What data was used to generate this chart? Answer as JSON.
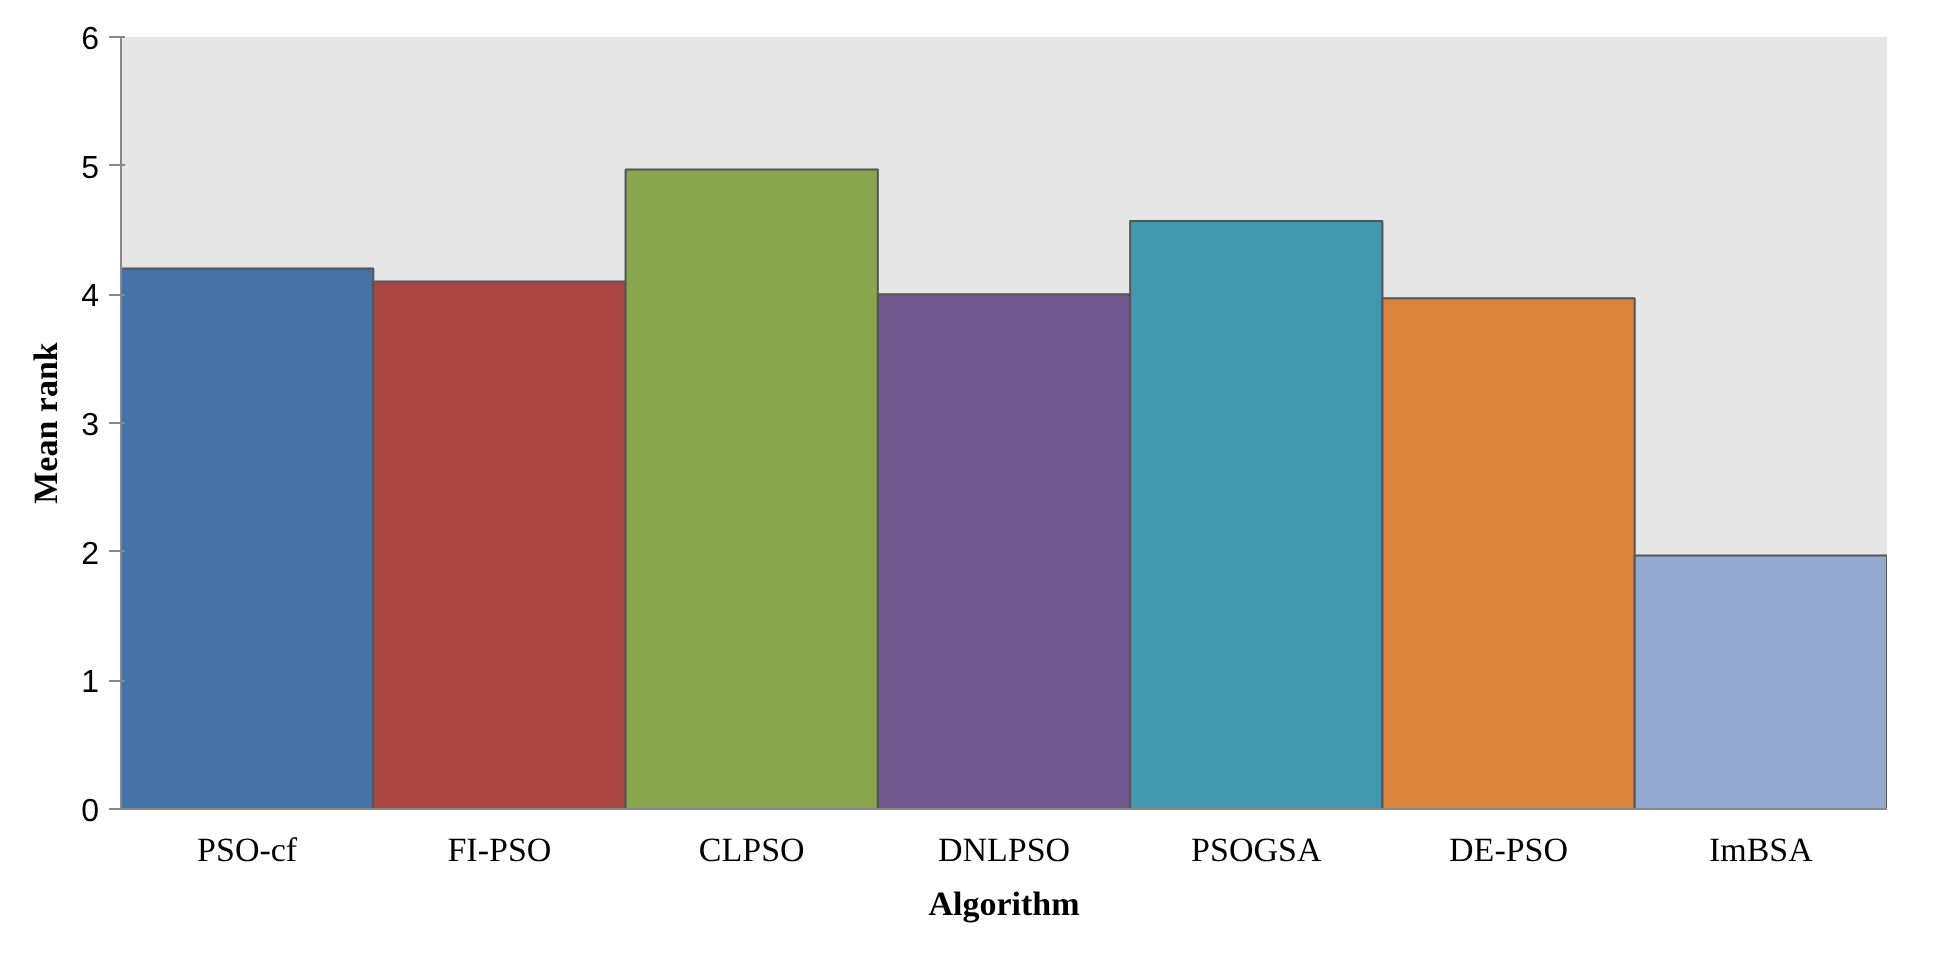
{
  "chart_data": {
    "type": "bar",
    "xlabel": "Algorithm",
    "ylabel": "Mean rank",
    "categories": [
      "PSO-cf",
      "FI-PSO",
      "CLPSO",
      "DNLPSO",
      "PSOGSA",
      "DE-PSO",
      "ImBSA"
    ],
    "values": [
      4.2,
      4.1,
      4.97,
      4.0,
      4.57,
      3.97,
      1.97
    ],
    "colors": [
      "#4572a7",
      "#aa4643",
      "#89a54e",
      "#71588f",
      "#4198af",
      "#db843d",
      "#93a9cf"
    ],
    "ylim": [
      0,
      6
    ],
    "yticks": [
      0,
      1,
      2,
      3,
      4,
      5,
      6
    ]
  }
}
